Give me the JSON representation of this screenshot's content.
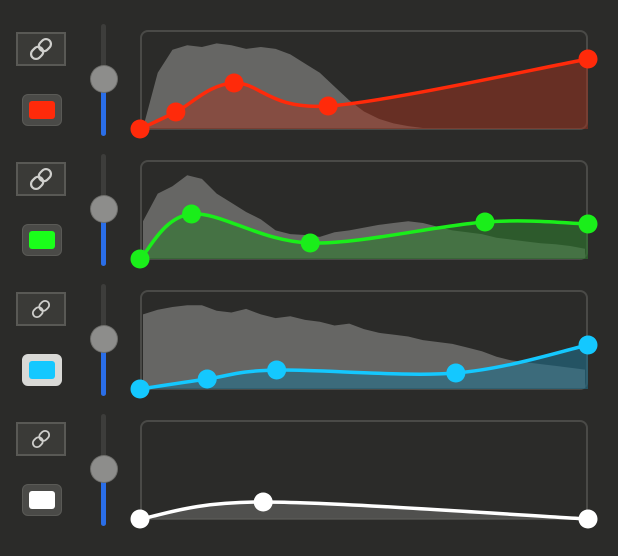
{
  "colors": {
    "background": "#2b2b29",
    "slider_fill": "#2a6ee8",
    "histogram": "#666664"
  },
  "slider_icon": "slider-thumb-icon",
  "channels": [
    {
      "id": "red",
      "link_icon": "link-icon",
      "swatch_color": "#ff2a0a",
      "curve_color": "#ff2a0a",
      "fill_color": "#a3332080",
      "slider_level": 0.5,
      "selected": false,
      "points": [
        [
          0,
          0
        ],
        [
          0.08,
          0.17
        ],
        [
          0.21,
          0.46
        ],
        [
          0.42,
          0.23
        ],
        [
          1,
          0.7
        ]
      ]
    },
    {
      "id": "green",
      "link_icon": "link-icon",
      "swatch_color": "#1aff1a",
      "curve_color": "#1aee1a",
      "fill_color": "#2f7a2f99",
      "slider_level": 0.5,
      "selected": false,
      "points": [
        [
          0,
          0
        ],
        [
          0.115,
          0.45
        ],
        [
          0.38,
          0.16
        ],
        [
          0.77,
          0.37
        ],
        [
          1,
          0.35
        ]
      ]
    },
    {
      "id": "blue",
      "link_icon": "link-icon",
      "swatch_color": "#14c8ff",
      "curve_color": "#14c8ff",
      "fill_color": "#1f6e8a99",
      "slider_level": 0.5,
      "selected": true,
      "points": [
        [
          0,
          0
        ],
        [
          0.15,
          0.1
        ],
        [
          0.305,
          0.19
        ],
        [
          0.705,
          0.16
        ],
        [
          1,
          0.44
        ]
      ]
    },
    {
      "id": "white",
      "link_icon": "link-icon",
      "swatch_color": "#ffffff",
      "curve_color": "#ffffff",
      "fill_color": "#5a5a58cc",
      "slider_level": 0.5,
      "selected": false,
      "points": [
        [
          0,
          0
        ],
        [
          0.275,
          0.17
        ],
        [
          1,
          0
        ]
      ]
    }
  ]
}
